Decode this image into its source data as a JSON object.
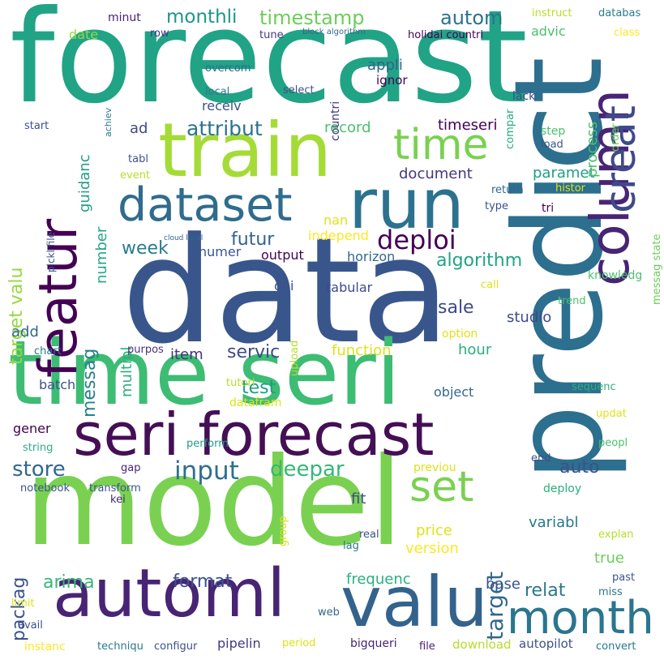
{
  "words": [
    {
      "text": "forecast",
      "color": "#21a386"
    },
    {
      "text": "data",
      "color": "#39568c"
    },
    {
      "text": "predict",
      "color": "#2d6f8e"
    },
    {
      "text": "model",
      "color": "#7ad151"
    },
    {
      "text": "time seri",
      "color": "#3dbc74"
    },
    {
      "text": "train",
      "color": "#a5db36"
    },
    {
      "text": "run",
      "color": "#2c728e"
    },
    {
      "text": "valu",
      "color": "#33638d"
    },
    {
      "text": "automl",
      "color": "#482475"
    },
    {
      "text": "seri forecast",
      "color": "#440f54"
    },
    {
      "text": "column",
      "color": "#482475"
    },
    {
      "text": "dataset",
      "color": "#2f6c8e"
    },
    {
      "text": "featur",
      "color": "#440154"
    },
    {
      "text": "month",
      "color": "#2a768e"
    },
    {
      "text": "time",
      "color": "#7ad151"
    },
    {
      "text": "creat",
      "color": "#3e4a89"
    },
    {
      "text": "set",
      "color": "#7ad151"
    },
    {
      "text": "deploi",
      "color": "#440154"
    },
    {
      "text": "input",
      "color": "#2d708e"
    },
    {
      "text": "store",
      "color": "#31688e"
    },
    {
      "text": "deepar",
      "color": "#35b779"
    },
    {
      "text": "target",
      "color": "#31688e"
    },
    {
      "text": "attribut",
      "color": "#2c728e"
    },
    {
      "text": "monthli",
      "color": "#1f968b"
    },
    {
      "text": "timestamp",
      "color": "#6ccd5a"
    },
    {
      "text": "autom",
      "color": "#2c728e"
    },
    {
      "text": "futur",
      "color": "#33638d"
    },
    {
      "text": "target valu",
      "color": "#95d840"
    },
    {
      "text": "messag",
      "color": "#27808e"
    },
    {
      "text": "week",
      "color": "#287c8e"
    },
    {
      "text": "algorithm",
      "color": "#20a486"
    },
    {
      "text": "servic",
      "color": "#3e4a89"
    },
    {
      "text": "format",
      "color": "#3b528b"
    },
    {
      "text": "arima",
      "color": "#35b779"
    },
    {
      "text": "packag",
      "color": "#3b528b"
    },
    {
      "text": "test",
      "color": "#1e9c89"
    },
    {
      "text": "relat",
      "color": "#2a788e"
    },
    {
      "text": "sale",
      "color": "#3e4a89"
    },
    {
      "text": "auto",
      "color": "#3b528b"
    },
    {
      "text": "multipl",
      "color": "#29af7f"
    },
    {
      "text": "number",
      "color": "#22a785"
    },
    {
      "text": "guidanc",
      "color": "#1f9e89"
    },
    {
      "text": "document",
      "color": "#453781"
    },
    {
      "text": "function",
      "color": "#dde318"
    },
    {
      "text": "hour",
      "color": "#29af7f"
    },
    {
      "text": "studio",
      "color": "#3e4a89"
    },
    {
      "text": "item",
      "color": "#46327e"
    },
    {
      "text": "add",
      "color": "#31688e"
    },
    {
      "text": "price",
      "color": "#dde318"
    },
    {
      "text": "version",
      "color": "#fde725"
    },
    {
      "text": "frequenc",
      "color": "#2ab07f"
    },
    {
      "text": "base",
      "color": "#3b528b"
    },
    {
      "text": "true",
      "color": "#6ccd5a"
    },
    {
      "text": "fit",
      "color": "#3e4a89"
    },
    {
      "text": "variabl",
      "color": "#2a788e"
    },
    {
      "text": "ad",
      "color": "#3e4a89"
    },
    {
      "text": "record",
      "color": "#4ac16d"
    },
    {
      "text": "appli",
      "color": "#33638d"
    },
    {
      "text": "paramet",
      "color": "#1f9e89"
    },
    {
      "text": "process",
      "color": "#4ac16d"
    },
    {
      "text": "timeseri",
      "color": "#440154"
    },
    {
      "text": "numer",
      "color": "#39568c"
    },
    {
      "text": "horizon",
      "color": "#31688e"
    },
    {
      "text": "output",
      "color": "#440154"
    },
    {
      "text": "dai",
      "color": "#3b528b"
    },
    {
      "text": "tabular",
      "color": "#3e4a89"
    },
    {
      "text": "batch",
      "color": "#3b528b"
    },
    {
      "text": "object",
      "color": "#31688e"
    },
    {
      "text": "gener",
      "color": "#440154"
    },
    {
      "text": "nan",
      "color": "#dde318"
    },
    {
      "text": "independ",
      "color": "#fde725"
    },
    {
      "text": "date",
      "color": "#95d840"
    },
    {
      "text": "row",
      "color": "#453781"
    },
    {
      "text": "minut",
      "color": "#482475"
    },
    {
      "text": "tune",
      "color": "#453781"
    },
    {
      "text": "block algorithm",
      "color": "#31688e"
    },
    {
      "text": "holidai countri",
      "color": "#440154"
    },
    {
      "text": "instruct",
      "color": "#b5de2b"
    },
    {
      "text": "databas",
      "color": "#287c8e"
    },
    {
      "text": "advic",
      "color": "#4ac16d"
    },
    {
      "text": "class",
      "color": "#fde725"
    },
    {
      "text": "overcom",
      "color": "#31688e"
    },
    {
      "text": "countri",
      "color": "#453781"
    },
    {
      "text": "compar",
      "color": "#26ad81"
    },
    {
      "text": "ignor",
      "color": "#440154"
    },
    {
      "text": "local",
      "color": "#2a788e"
    },
    {
      "text": "select",
      "color": "#3b528b"
    },
    {
      "text": "receiv",
      "color": "#3b528b"
    },
    {
      "text": "lack",
      "color": "#3e4a89"
    },
    {
      "text": "order",
      "color": "#6ccd5a"
    },
    {
      "text": "achiev",
      "color": "#2a788e"
    },
    {
      "text": "cloud local",
      "color": "#31688e"
    },
    {
      "text": "start",
      "color": "#3b528b"
    },
    {
      "text": "step",
      "color": "#4ac16d"
    },
    {
      "text": "load",
      "color": "#3b528b"
    },
    {
      "text": "tabl",
      "color": "#3b528b"
    },
    {
      "text": "event",
      "color": "#b5de2b"
    },
    {
      "text": "histor",
      "color": "#dde318"
    },
    {
      "text": "return",
      "color": "#31688e"
    },
    {
      "text": "messag state",
      "color": "#6ccd5a"
    },
    {
      "text": "pickl file",
      "color": "#3b528b"
    },
    {
      "text": "type",
      "color": "#3b528b"
    },
    {
      "text": "tri",
      "color": "#440154"
    },
    {
      "text": "knowledg",
      "color": "#4ac16d"
    },
    {
      "text": "upload",
      "color": "#b5de2b"
    },
    {
      "text": "call",
      "color": "#dde318"
    },
    {
      "text": "trend",
      "color": "#4ac16d"
    },
    {
      "text": "option",
      "color": "#dde318"
    },
    {
      "text": "purpos",
      "color": "#46327e"
    },
    {
      "text": "chart",
      "color": "#2a788e"
    },
    {
      "text": "tutori",
      "color": "#b5de2b"
    },
    {
      "text": "datafram",
      "color": "#dde318"
    },
    {
      "text": "sequenc",
      "color": "#2ab07f"
    },
    {
      "text": "updat",
      "color": "#dde318"
    },
    {
      "text": "perform",
      "color": "#1f9e89"
    },
    {
      "text": "string",
      "color": "#2ab07f"
    },
    {
      "text": "end",
      "color": "#3b528b"
    },
    {
      "text": "peopl",
      "color": "#4ac16d"
    },
    {
      "text": "notebook",
      "color": "#3b528b"
    },
    {
      "text": "transform",
      "color": "#3b528b"
    },
    {
      "text": "gap",
      "color": "#482475"
    },
    {
      "text": "previou",
      "color": "#dde318"
    },
    {
      "text": "deploy",
      "color": "#2ab07f"
    },
    {
      "text": "kei",
      "color": "#482475"
    },
    {
      "text": "group",
      "color": "#dde318"
    },
    {
      "text": "real",
      "color": "#3b528b"
    },
    {
      "text": "lag",
      "color": "#2a788e"
    },
    {
      "text": "explan",
      "color": "#b5de2b"
    },
    {
      "text": "past",
      "color": "#3b528b"
    },
    {
      "text": "miss",
      "color": "#2a788e"
    },
    {
      "text": "limit",
      "color": "#dde318"
    },
    {
      "text": "avail",
      "color": "#3b528b"
    },
    {
      "text": "web",
      "color": "#31688e"
    },
    {
      "text": "instanc",
      "color": "#fde725"
    },
    {
      "text": "techniqu",
      "color": "#2a788e"
    },
    {
      "text": "configur",
      "color": "#3b528b"
    },
    {
      "text": "pipelin",
      "color": "#453781"
    },
    {
      "text": "period",
      "color": "#dde318"
    },
    {
      "text": "bigqueri",
      "color": "#482475"
    },
    {
      "text": "file",
      "color": "#482475"
    },
    {
      "text": "download",
      "color": "#b5de2b"
    },
    {
      "text": "autopilot",
      "color": "#3b528b"
    },
    {
      "text": "convert",
      "color": "#2a788e"
    }
  ]
}
